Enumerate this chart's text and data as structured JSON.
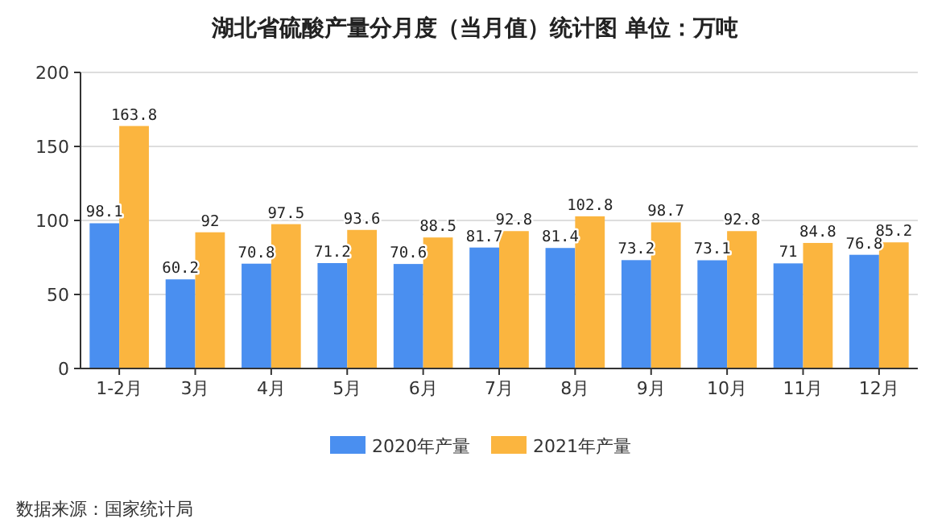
{
  "chart_data": {
    "type": "bar",
    "title": "湖北省硫酸产量分月度（当月值）统计图 单位：万吨",
    "categories": [
      "1-2月",
      "3月",
      "4月",
      "5月",
      "6月",
      "7月",
      "8月",
      "9月",
      "10月",
      "11月",
      "12月"
    ],
    "series": [
      {
        "name": "2020年产量",
        "color": "#4a8ff0",
        "values": [
          98.1,
          60.2,
          70.8,
          71.2,
          70.6,
          81.7,
          81.4,
          73.2,
          73.1,
          71,
          76.8
        ]
      },
      {
        "name": "2021年产量",
        "color": "#fbb53f",
        "values": [
          163.8,
          92,
          97.5,
          93.6,
          88.5,
          92.8,
          102.8,
          98.7,
          92.8,
          84.8,
          85.2
        ]
      }
    ],
    "ylim": [
      0,
      200
    ],
    "yticks": [
      0,
      50,
      100,
      150,
      200
    ],
    "grid": "y",
    "legend": "bottom",
    "data_labels": true,
    "annotations": [
      "数据来源：国家统计局"
    ]
  }
}
